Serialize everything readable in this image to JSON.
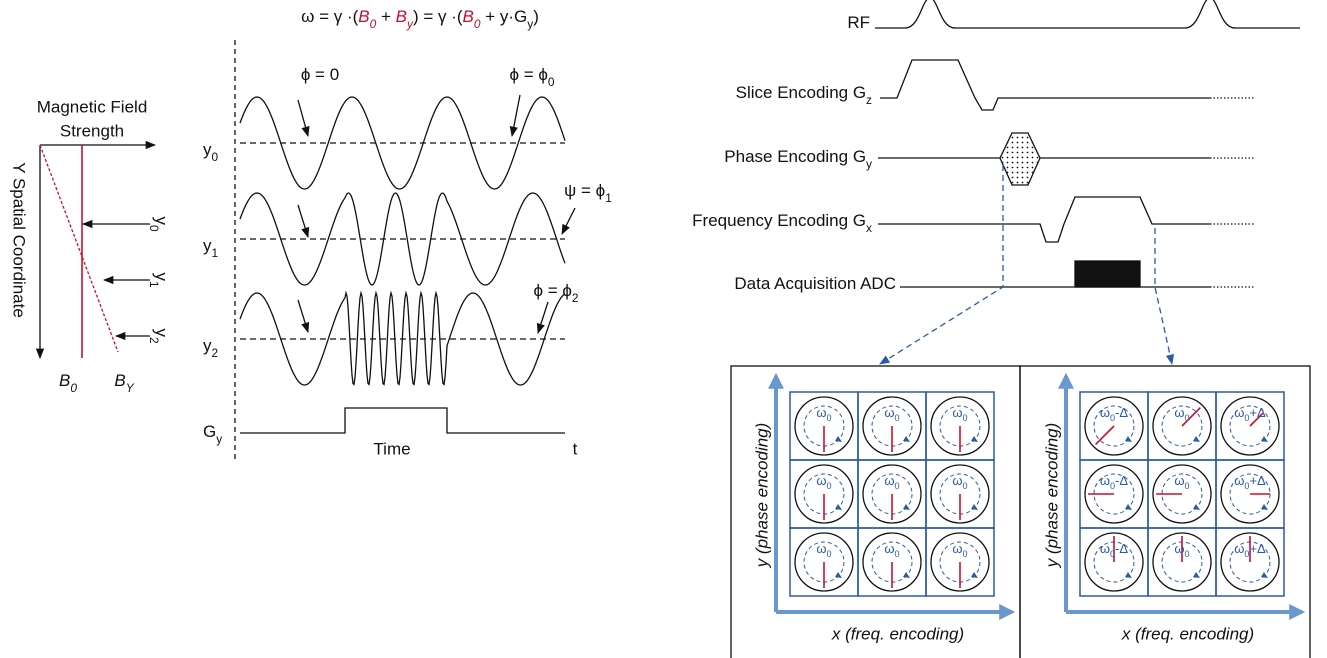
{
  "left_panel": {
    "field_label_lines": [
      "Magnetic Field",
      "Strength"
    ],
    "axis_label": "Y Spatial Coordinate",
    "positions": [
      {
        "text": "y",
        "sub": "0"
      },
      {
        "text": "y",
        "sub": "1"
      },
      {
        "text": "y",
        "sub": "2"
      }
    ],
    "fields": [
      {
        "text": "B",
        "sub": "0"
      },
      {
        "text": "B",
        "sub": "Y"
      }
    ]
  },
  "wave_panel": {
    "equation": [
      {
        "text": "ω = γ ·("
      },
      {
        "text": "B",
        "sub": "0",
        "color": "#c8102e"
      },
      {
        "text": " + "
      },
      {
        "text": "B",
        "sub": "y",
        "color": "#c8102e"
      },
      {
        "text": ") = γ ·("
      },
      {
        "text": "B",
        "sub": "0",
        "color": "#c8102e"
      },
      {
        "text": " + "
      },
      {
        "text": "y·G",
        "sub": "y"
      },
      {
        "text": ")"
      }
    ],
    "rows": [
      {
        "text": "y",
        "sub": "0"
      },
      {
        "text": "y",
        "sub": "1"
      },
      {
        "text": "y",
        "sub": "2"
      }
    ],
    "gradient": {
      "text": "G",
      "sub": "y"
    },
    "time_label": "Time",
    "t_label": "t",
    "annotations": [
      {
        "text": "ϕ = 0"
      },
      {
        "text": "ϕ = ϕ",
        "sub": "0"
      },
      {
        "text": "ψ = ϕ",
        "sub": "1"
      },
      {
        "text": "ϕ = ϕ",
        "sub": "2"
      }
    ]
  },
  "sequence": {
    "rows": [
      {
        "text": "RF"
      },
      {
        "text": "Slice Encoding G",
        "sub": "z"
      },
      {
        "text": "Phase Encoding G",
        "sub": "y"
      },
      {
        "text": "Frequency Encoding G",
        "sub": "x"
      },
      {
        "text": "Data Acquisition ADC"
      }
    ]
  },
  "grids": [
    {
      "y_label": "y (phase encoding)",
      "x_label": "x (freq. encoding)",
      "cells": [
        [
          {
            "text": "ω",
            "sub": "0"
          },
          {
            "text": "ω",
            "sub": "0"
          },
          {
            "text": "ω",
            "sub": "0"
          }
        ],
        [
          {
            "text": "ω",
            "sub": "0"
          },
          {
            "text": "ω",
            "sub": "0"
          },
          {
            "text": "ω",
            "sub": "0"
          }
        ],
        [
          {
            "text": "ω",
            "sub": "0"
          },
          {
            "text": "ω",
            "sub": "0"
          },
          {
            "text": "ω",
            "sub": "0"
          }
        ]
      ]
    },
    {
      "y_label": "y (phase encoding)",
      "x_label": "x (freq. encoding)",
      "cells": [
        [
          {
            "text": "ω",
            "sub": "0",
            "suffix": "-Δ"
          },
          {
            "text": "ω",
            "sub": "0"
          },
          {
            "text": "ω",
            "sub": "0",
            "suffix": "+Δ"
          }
        ],
        [
          {
            "text": "ω",
            "sub": "0",
            "suffix": "-Δ"
          },
          {
            "text": "ω",
            "sub": "0"
          },
          {
            "text": "ω",
            "sub": "0",
            "suffix": "+Δ"
          }
        ],
        [
          {
            "text": "ω",
            "sub": "0",
            "suffix": "-Δ"
          },
          {
            "text": "ω",
            "sub": "0"
          },
          {
            "text": "ω",
            "sub": "0",
            "suffix": "+Δ"
          }
        ]
      ]
    }
  ]
}
